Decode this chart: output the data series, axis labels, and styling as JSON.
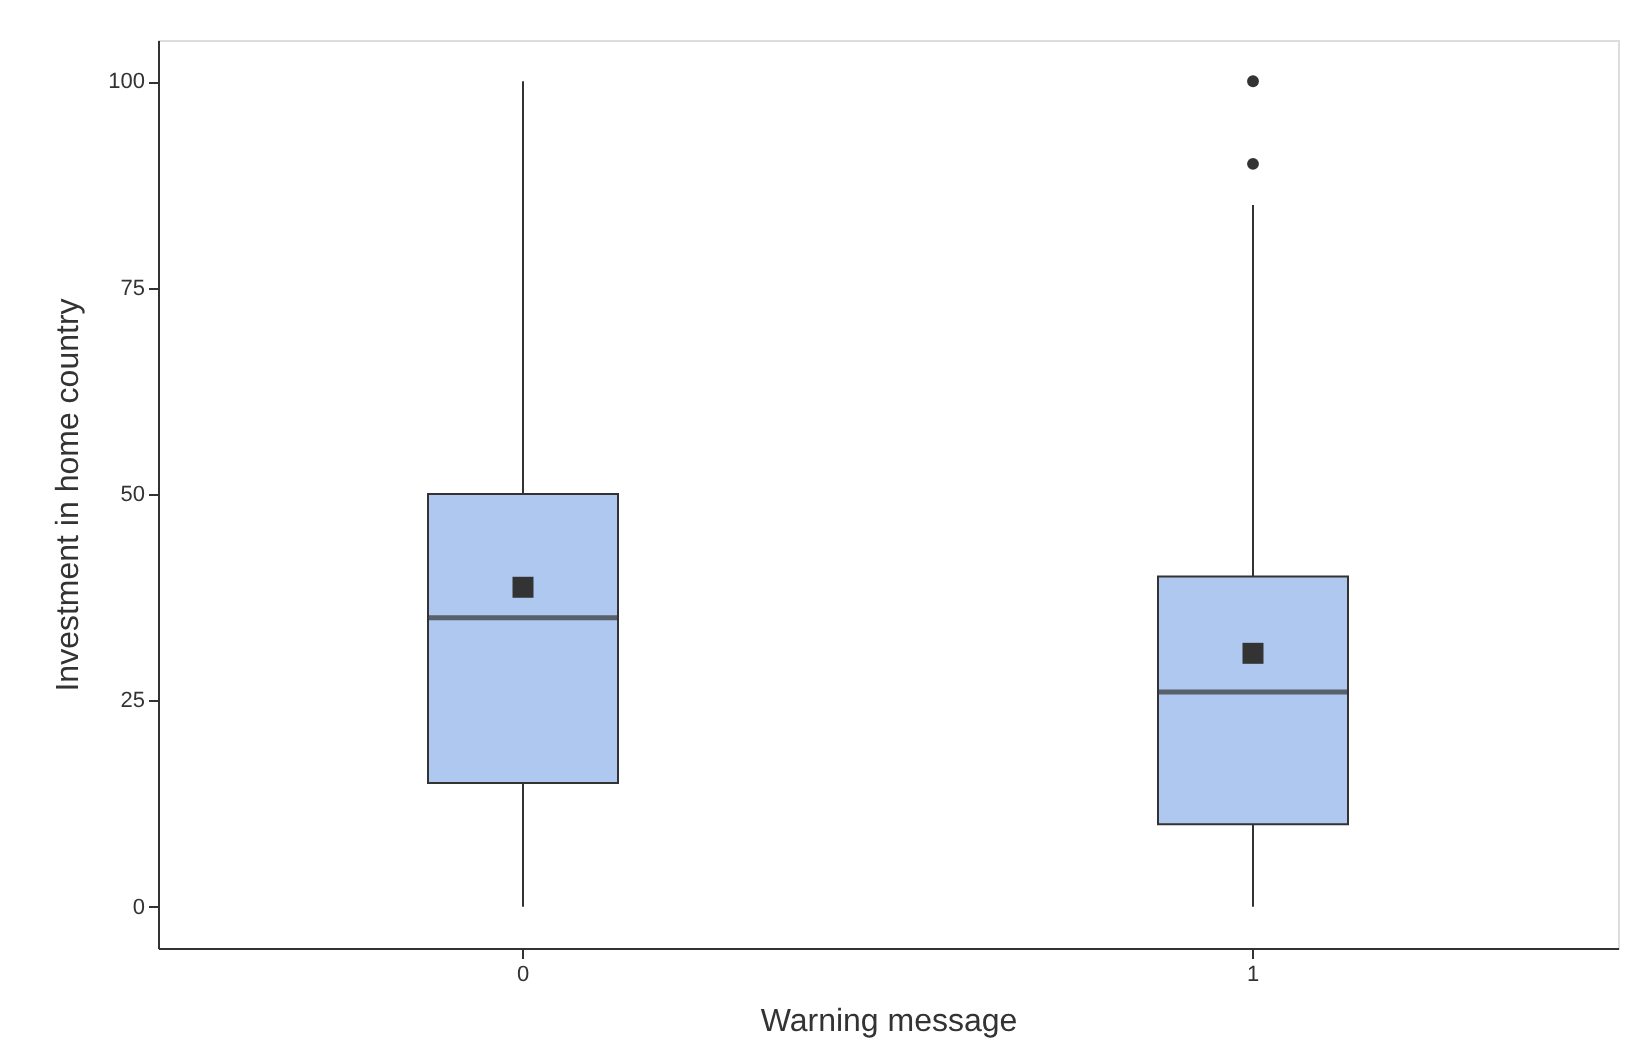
{
  "chart_data": {
    "type": "box",
    "xlabel": "Warning message",
    "ylabel": "Investment in home country",
    "categories": [
      "0",
      "1"
    ],
    "color": "#aec8f0",
    "boxes": [
      {
        "low": 0,
        "q1": 15,
        "median": 35,
        "q3": 50,
        "high": 100,
        "mean": 38.7
      },
      {
        "low": 0,
        "q1": 10,
        "median": 26,
        "q3": 40,
        "high": 85,
        "mean": 30.7,
        "outliers": [
          90,
          100
        ]
      }
    ],
    "ylim": [
      -5,
      105
    ],
    "yticks": [
      0,
      25,
      50,
      75,
      100
    ],
    "grid": false
  }
}
